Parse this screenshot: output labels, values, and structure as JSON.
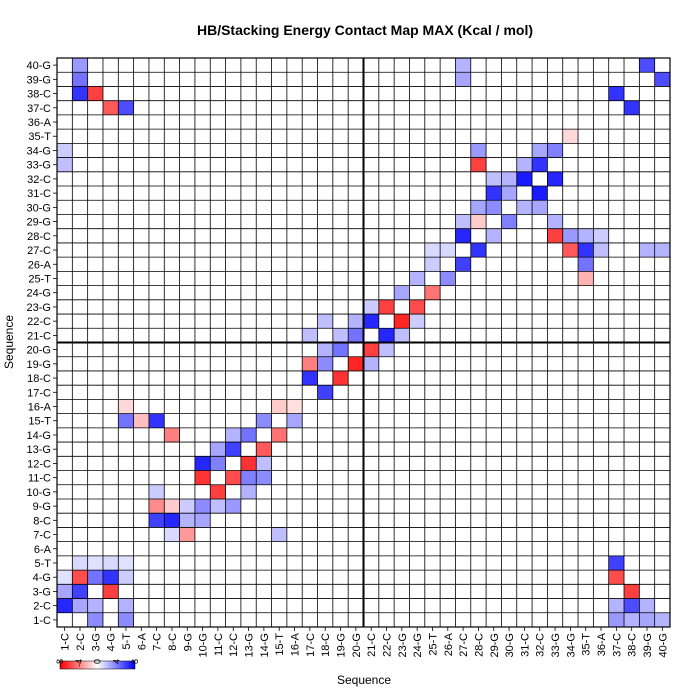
{
  "chart_data": {
    "type": "heatmap",
    "title": "HB/Stacking Energy Contact Map MAX (Kcal / mol)",
    "xlabel": "Sequence",
    "ylabel": "Sequence",
    "labels": [
      "1-C",
      "2-C",
      "3-G",
      "4-G",
      "5-T",
      "6-A",
      "7-C",
      "8-C",
      "9-G",
      "10-G",
      "11-C",
      "12-C",
      "13-G",
      "14-G",
      "15-T",
      "16-A",
      "17-C",
      "18-C",
      "19-G",
      "20-G",
      "21-C",
      "22-C",
      "23-G",
      "24-G",
      "25-T",
      "26-A",
      "27-C",
      "28-C",
      "29-G",
      "30-G",
      "31-C",
      "32-C",
      "33-G",
      "34-G",
      "35-T",
      "36-A",
      "37-C",
      "38-C",
      "39-G",
      "40-G"
    ],
    "colorbar": {
      "ticks": [
        "-8",
        "-4",
        "0",
        "4",
        "8"
      ],
      "low_color": "#ff0000",
      "mid_color": "#ffffff",
      "high_color": "#0000ff"
    },
    "divider": {
      "after_index": 20
    },
    "cells": [
      [
        1,
        2,
        "b",
        0.85
      ],
      [
        1,
        3,
        "b",
        0.35
      ],
      [
        1,
        4,
        "b",
        0.12
      ],
      [
        2,
        2,
        "b",
        0.35
      ],
      [
        2,
        3,
        "b",
        0.75
      ],
      [
        2,
        4,
        "r",
        0.7
      ],
      [
        2,
        5,
        "b",
        0.15
      ],
      [
        3,
        1,
        "b",
        0.45
      ],
      [
        3,
        2,
        "b",
        0.3
      ],
      [
        3,
        4,
        "b",
        0.55
      ],
      [
        3,
        5,
        "b",
        0.12
      ],
      [
        4,
        3,
        "r",
        0.75
      ],
      [
        4,
        4,
        "b",
        0.8
      ],
      [
        4,
        5,
        "b",
        0.15
      ],
      [
        5,
        1,
        "b",
        0.45
      ],
      [
        5,
        2,
        "b",
        0.3
      ],
      [
        5,
        4,
        "b",
        0.2
      ],
      [
        5,
        5,
        "b",
        0.12
      ],
      [
        8,
        7,
        "b",
        0.15
      ],
      [
        8,
        8,
        "b",
        0.85
      ],
      [
        8,
        9,
        "r",
        0.2
      ],
      [
        7,
        8,
        "b",
        0.75
      ],
      [
        7,
        9,
        "r",
        0.45
      ],
      [
        7,
        10,
        "b",
        0.2
      ],
      [
        9,
        7,
        "r",
        0.4
      ],
      [
        9,
        8,
        "b",
        0.3
      ],
      [
        9,
        9,
        "b",
        0.2
      ],
      [
        10,
        11,
        "r",
        0.8
      ],
      [
        10,
        12,
        "b",
        0.85
      ],
      [
        10,
        9,
        "b",
        0.45
      ],
      [
        10,
        8,
        "b",
        0.35
      ],
      [
        11,
        12,
        "b",
        0.5
      ],
      [
        11,
        10,
        "r",
        0.75
      ],
      [
        11,
        13,
        "b",
        0.35
      ],
      [
        11,
        9,
        "b",
        0.25
      ],
      [
        12,
        11,
        "r",
        0.7
      ],
      [
        12,
        13,
        "b",
        0.75
      ],
      [
        12,
        14,
        "b",
        0.3
      ],
      [
        12,
        9,
        "b",
        0.4
      ],
      [
        13,
        12,
        "r",
        0.8
      ],
      [
        13,
        14,
        "b",
        0.55
      ],
      [
        13,
        11,
        "b",
        0.5
      ],
      [
        13,
        10,
        "b",
        0.3
      ],
      [
        14,
        13,
        "r",
        0.65
      ],
      [
        14,
        15,
        "b",
        0.45
      ],
      [
        14,
        11,
        "b",
        0.45
      ],
      [
        14,
        12,
        "b",
        0.25
      ],
      [
        15,
        14,
        "r",
        0.55
      ],
      [
        15,
        16,
        "r",
        0.2
      ],
      [
        15,
        7,
        "b",
        0.25
      ],
      [
        16,
        15,
        "b",
        0.35
      ],
      [
        16,
        16,
        "r",
        0.12
      ],
      [
        17,
        18,
        "b",
        0.8
      ],
      [
        17,
        19,
        "r",
        0.5
      ],
      [
        17,
        21,
        "b",
        0.25
      ],
      [
        18,
        17,
        "b",
        0.75
      ],
      [
        18,
        19,
        "b",
        0.45
      ],
      [
        18,
        20,
        "b",
        0.3
      ],
      [
        18,
        22,
        "b",
        0.25
      ],
      [
        19,
        18,
        "r",
        0.8
      ],
      [
        19,
        20,
        "b",
        0.55
      ],
      [
        19,
        21,
        "b",
        0.25
      ],
      [
        20,
        19,
        "r",
        0.85
      ],
      [
        20,
        21,
        "b",
        0.55
      ],
      [
        20,
        22,
        "b",
        0.3
      ],
      [
        21,
        22,
        "b",
        0.85
      ],
      [
        21,
        20,
        "r",
        0.75
      ],
      [
        21,
        19,
        "b",
        0.3
      ],
      [
        21,
        23,
        "b",
        0.2
      ],
      [
        22,
        21,
        "b",
        0.85
      ],
      [
        22,
        23,
        "r",
        0.75
      ],
      [
        22,
        20,
        "b",
        0.25
      ],
      [
        23,
        22,
        "r",
        0.85
      ],
      [
        23,
        24,
        "b",
        0.35
      ],
      [
        23,
        21,
        "b",
        0.25
      ],
      [
        24,
        23,
        "r",
        0.7
      ],
      [
        24,
        25,
        "b",
        0.3
      ],
      [
        24,
        22,
        "b",
        0.2
      ],
      [
        25,
        24,
        "r",
        0.55
      ],
      [
        25,
        26,
        "b",
        0.2
      ],
      [
        25,
        27,
        "b",
        0.15
      ],
      [
        26,
        25,
        "b",
        0.45
      ],
      [
        26,
        27,
        "b",
        0.15
      ],
      [
        27,
        28,
        "b",
        0.85
      ],
      [
        27,
        26,
        "b",
        0.75
      ],
      [
        27,
        29,
        "b",
        0.25
      ],
      [
        27,
        39,
        "b",
        0.35
      ],
      [
        27,
        40,
        "b",
        0.3
      ],
      [
        28,
        27,
        "b",
        0.8
      ],
      [
        28,
        29,
        "r",
        0.2
      ],
      [
        28,
        30,
        "b",
        0.35
      ],
      [
        28,
        33,
        "r",
        0.75
      ],
      [
        28,
        34,
        "b",
        0.4
      ],
      [
        29,
        28,
        "b",
        0.3
      ],
      [
        29,
        30,
        "b",
        0.45
      ],
      [
        29,
        31,
        "b",
        0.8
      ],
      [
        29,
        32,
        "b",
        0.25
      ],
      [
        30,
        29,
        "b",
        0.5
      ],
      [
        30,
        31,
        "b",
        0.35
      ],
      [
        30,
        32,
        "b",
        0.3
      ],
      [
        31,
        32,
        "b",
        0.9
      ],
      [
        31,
        30,
        "b",
        0.3
      ],
      [
        31,
        33,
        "b",
        0.3
      ],
      [
        32,
        31,
        "b",
        0.9
      ],
      [
        32,
        33,
        "b",
        0.8
      ],
      [
        32,
        30,
        "b",
        0.35
      ],
      [
        32,
        34,
        "b",
        0.35
      ],
      [
        33,
        28,
        "r",
        0.75
      ],
      [
        33,
        32,
        "b",
        0.85
      ],
      [
        33,
        34,
        "b",
        0.5
      ],
      [
        33,
        29,
        "b",
        0.3
      ],
      [
        34,
        27,
        "r",
        0.65
      ],
      [
        34,
        28,
        "b",
        0.4
      ],
      [
        34,
        35,
        "r",
        0.15
      ],
      [
        35,
        26,
        "b",
        0.55
      ],
      [
        35,
        27,
        "b",
        0.8
      ],
      [
        35,
        28,
        "b",
        0.3
      ],
      [
        35,
        25,
        "r",
        0.3
      ],
      [
        36,
        27,
        "b",
        0.25
      ],
      [
        36,
        28,
        "b",
        0.2
      ],
      [
        37,
        1,
        "b",
        0.4
      ],
      [
        37,
        2,
        "b",
        0.3
      ],
      [
        37,
        4,
        "r",
        0.7
      ],
      [
        37,
        5,
        "b",
        0.75
      ],
      [
        37,
        38,
        "b",
        0.8
      ],
      [
        38,
        1,
        "b",
        0.3
      ],
      [
        38,
        2,
        "b",
        0.7
      ],
      [
        38,
        3,
        "r",
        0.75
      ],
      [
        38,
        37,
        "b",
        0.8
      ],
      [
        39,
        1,
        "b",
        0.35
      ],
      [
        39,
        2,
        "b",
        0.3
      ],
      [
        39,
        40,
        "b",
        0.7
      ],
      [
        39,
        27,
        "b",
        0.3
      ],
      [
        40,
        1,
        "b",
        0.3
      ],
      [
        40,
        39,
        "b",
        0.7
      ],
      [
        40,
        27,
        "b",
        0.3
      ],
      [
        4,
        37,
        "r",
        0.65
      ],
      [
        5,
        37,
        "b",
        0.7
      ],
      [
        3,
        38,
        "r",
        0.75
      ],
      [
        2,
        38,
        "b",
        0.8
      ],
      [
        2,
        39,
        "b",
        0.55
      ],
      [
        2,
        40,
        "b",
        0.4
      ],
      [
        6,
        15,
        "r",
        0.25
      ],
      [
        5,
        15,
        "b",
        0.55
      ],
      [
        5,
        16,
        "r",
        0.15
      ],
      [
        7,
        15,
        "b",
        0.8
      ],
      [
        8,
        14,
        "r",
        0.5
      ],
      [
        1,
        33,
        "b",
        0.25
      ],
      [
        1,
        34,
        "b",
        0.2
      ]
    ]
  }
}
